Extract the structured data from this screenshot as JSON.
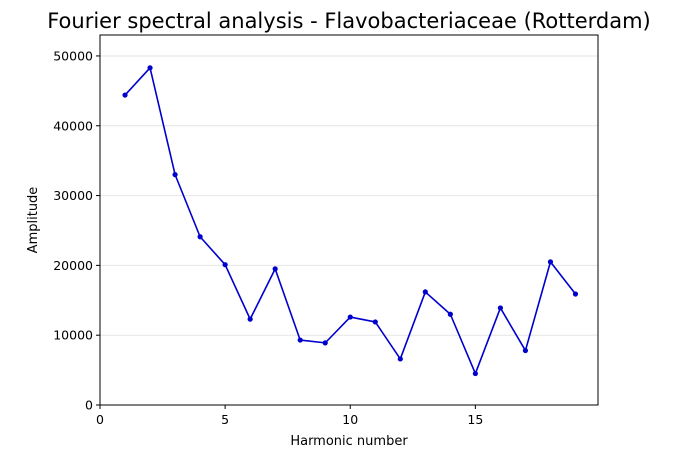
{
  "chart_data": {
    "type": "line",
    "title": "Fourier spectral analysis - Flavobacteriaceae (Rotterdam)",
    "xlabel": "Harmonic number",
    "ylabel": "Amplitude",
    "xlim": [
      0,
      19.9
    ],
    "ylim": [
      0,
      53000
    ],
    "xticks": [
      0,
      5,
      10,
      15
    ],
    "xtick_labels": [
      "0",
      "5",
      "10",
      "15"
    ],
    "yticks": [
      0,
      10000,
      20000,
      30000,
      40000,
      50000
    ],
    "ytick_labels": [
      "0",
      "10000",
      "20000",
      "30000",
      "40000",
      "50000"
    ],
    "grid": "horizontal",
    "series": [
      {
        "color": "#0000cc",
        "marker": "dot",
        "x": [
          1,
          2,
          3,
          4,
          5,
          6,
          7,
          8,
          9,
          10,
          11,
          12,
          13,
          14,
          15,
          16,
          17,
          18,
          19
        ],
        "y": [
          44400,
          48300,
          33000,
          24100,
          20100,
          12300,
          19500,
          9300,
          8900,
          12600,
          11900,
          6600,
          16200,
          13000,
          4500,
          13900,
          7800,
          20500,
          15900
        ]
      }
    ]
  }
}
